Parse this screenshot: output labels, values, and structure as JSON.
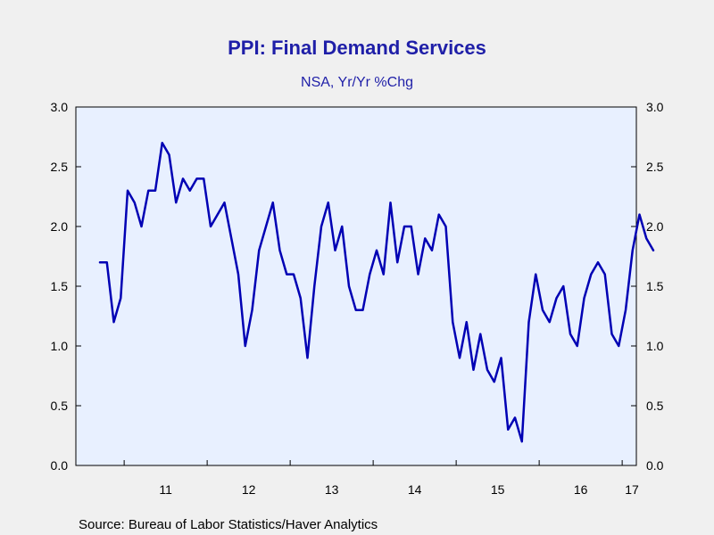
{
  "chart_data": {
    "type": "line",
    "title": "PPI: Final Demand Services",
    "subtitle": "NSA, Yr/Yr %Chg",
    "xlabel": "",
    "ylabel": "",
    "ylim": [
      0.0,
      3.0
    ],
    "yticks": [
      "0.0",
      "0.5",
      "1.0",
      "1.5",
      "2.0",
      "2.5",
      "3.0"
    ],
    "xticks": [
      "11",
      "12",
      "13",
      "14",
      "15",
      "16",
      "17"
    ],
    "grid": false,
    "line_color": "#0000b4",
    "x_start": "2010-09",
    "series": [
      {
        "values": [
          1.7,
          1.7,
          1.2,
          1.4,
          2.3,
          2.2,
          2.0,
          2.3,
          2.3,
          2.7,
          2.6,
          2.2,
          2.4,
          2.3,
          2.4,
          2.4,
          2.0,
          2.1,
          2.2,
          1.9,
          1.6,
          1.0,
          1.3,
          1.8,
          2.0,
          2.2,
          1.8,
          1.6,
          1.6,
          1.4,
          0.9,
          1.5,
          2.0,
          2.2,
          1.8,
          2.0,
          1.5,
          1.3,
          1.3,
          1.6,
          1.8,
          1.6,
          2.2,
          1.7,
          2.0,
          2.0,
          1.6,
          1.9,
          1.8,
          2.1,
          2.0,
          1.2,
          0.9,
          1.2,
          0.8,
          1.1,
          0.8,
          0.7,
          0.9,
          0.3,
          0.4,
          0.2,
          1.2,
          1.6,
          1.3,
          1.2,
          1.4,
          1.5,
          1.1,
          1.0,
          1.4,
          1.6,
          1.7,
          1.6,
          1.1,
          1.0,
          1.3,
          1.8,
          2.1,
          1.9,
          1.8
        ]
      }
    ]
  },
  "source": "Source:  Bureau of Labor Statistics/Haver Analytics"
}
